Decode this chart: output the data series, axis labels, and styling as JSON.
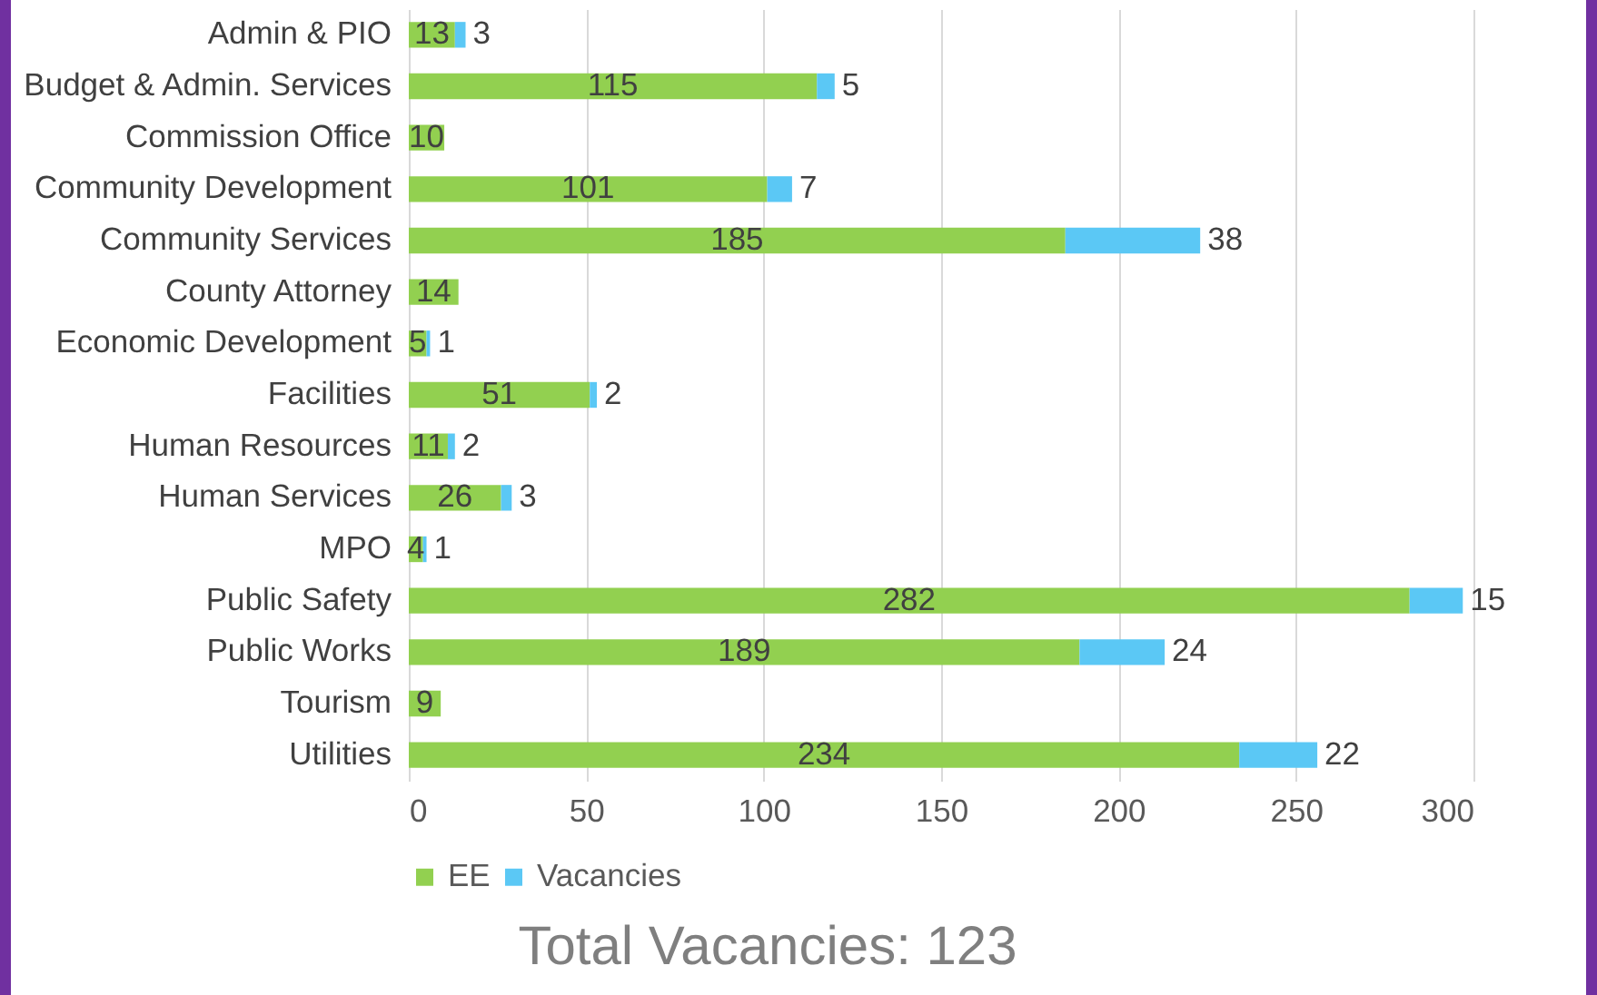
{
  "chart_data": {
    "type": "bar",
    "orientation": "horizontal",
    "stacked": true,
    "categories": [
      "Admin & PIO",
      "Budget & Admin. Services",
      "Commission Office",
      "Community Development",
      "Community Services",
      "County Attorney",
      "Economic Development",
      "Facilities",
      "Human Resources",
      "Human Services",
      "MPO",
      "Public Safety",
      "Public Works",
      "Tourism",
      "Utilities"
    ],
    "series": [
      {
        "name": "EE",
        "color": "#92d050",
        "values": [
          13,
          115,
          10,
          101,
          185,
          14,
          5,
          51,
          11,
          26,
          4,
          282,
          189,
          9,
          234
        ]
      },
      {
        "name": "Vacancies",
        "color": "#5bc8f5",
        "values": [
          3,
          5,
          null,
          7,
          38,
          null,
          1,
          2,
          2,
          3,
          1,
          15,
          24,
          null,
          22
        ]
      }
    ],
    "xlim": [
      0,
      300
    ],
    "xticks": [
      0,
      50,
      100,
      150,
      200,
      250,
      300
    ],
    "grid": "x",
    "legend": "bottom",
    "data_labels": true,
    "annotations": [
      "Total Vacancies: 123"
    ]
  }
}
